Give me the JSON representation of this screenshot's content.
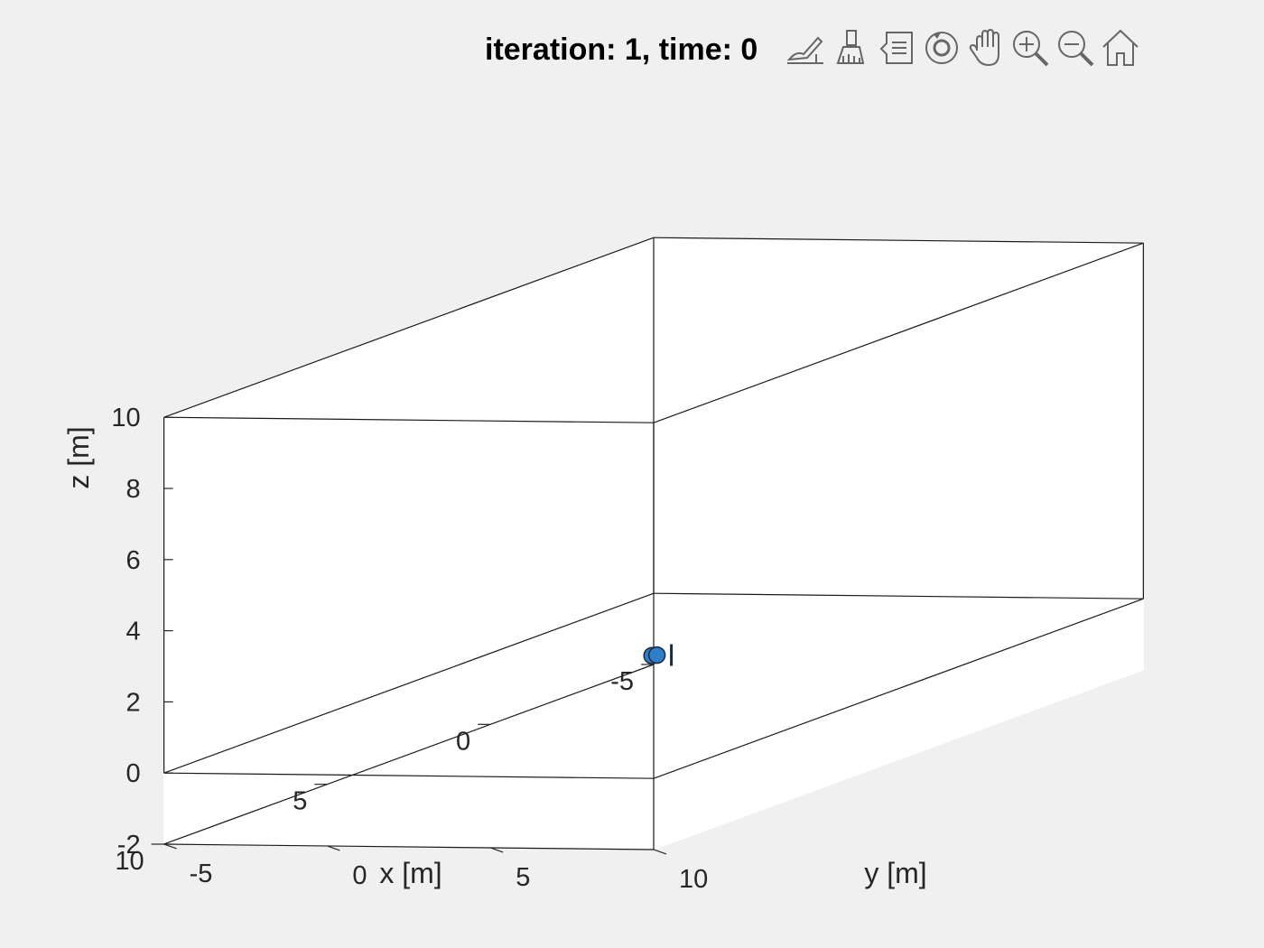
{
  "chart_data": {
    "type": "scatter",
    "projection": "3d",
    "title": "iteration: 1, time: 0",
    "xlabel": "x [m]",
    "ylabel": "y [m]",
    "zlabel": "z [m]",
    "xlim": [
      -5,
      10
    ],
    "ylim": [
      -5,
      10
    ],
    "zlim": [
      -2,
      10
    ],
    "xticks": [
      -5,
      0,
      5,
      10
    ],
    "yticks": [
      -5,
      0,
      5,
      10
    ],
    "zticks": [
      -2,
      0,
      2,
      4,
      6,
      8,
      10
    ],
    "grid": false,
    "marker_color": "#2f7fc8",
    "series": [
      {
        "points": [
          {
            "x": 0.05,
            "y": 0.0,
            "z": 0
          },
          {
            "x": 0.0,
            "y": 0.1,
            "z": 0
          }
        ]
      }
    ]
  },
  "toolbar": {
    "buttons": [
      {
        "name": "export-icon"
      },
      {
        "name": "brush-icon"
      },
      {
        "name": "data-tips-icon"
      },
      {
        "name": "rotate-3d-icon"
      },
      {
        "name": "pan-hand-icon"
      },
      {
        "name": "zoom-in-icon"
      },
      {
        "name": "zoom-out-icon"
      },
      {
        "name": "home-restore-icon"
      }
    ]
  }
}
